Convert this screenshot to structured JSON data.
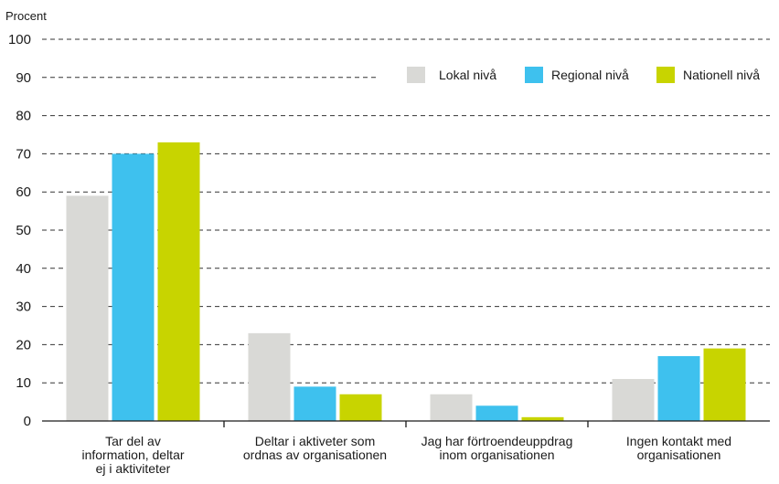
{
  "chart_data": {
    "type": "bar",
    "ylabel": "Procent",
    "ylim": [
      0,
      100
    ],
    "yticks": [
      0,
      10,
      20,
      30,
      40,
      50,
      60,
      70,
      80,
      90,
      100
    ],
    "grid": "horizontal-dashed",
    "legend_position": "top-right",
    "categories": [
      [
        "Tar del av",
        "information, deltar",
        "ej i aktiviteter"
      ],
      [
        "Deltar i aktiveter som",
        "ordnas av organisationen"
      ],
      [
        "Jag har förtroendeuppdrag",
        "inom organisationen"
      ],
      [
        "Ingen kontakt med",
        "organisationen"
      ]
    ],
    "series": [
      {
        "name": "Lokal nivå",
        "color": "#d9d9d6",
        "values": [
          59,
          23,
          7,
          11
        ]
      },
      {
        "name": "Regional nivå",
        "color": "#3ec1ee",
        "values": [
          70,
          9,
          4,
          17
        ]
      },
      {
        "name": "Nationell nivå",
        "color": "#c8d400",
        "values": [
          73,
          7,
          1,
          19
        ]
      }
    ]
  }
}
